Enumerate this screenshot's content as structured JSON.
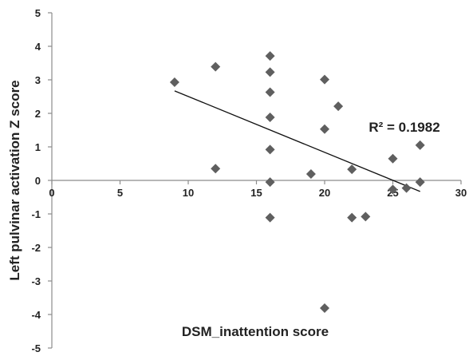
{
  "chart_data": {
    "type": "scatter",
    "title": "",
    "xlabel": "DSM_inattention score",
    "ylabel": "Left pulvinar activation Z score",
    "xlim": [
      0,
      30
    ],
    "ylim": [
      -5,
      5
    ],
    "xticks": [
      "0",
      "5",
      "10",
      "15",
      "20",
      "25",
      "30"
    ],
    "yticks": [
      "5",
      "4",
      "3",
      "2",
      "1",
      "0",
      "-1",
      "-2",
      "-3",
      "-4",
      "-5"
    ],
    "grid": false,
    "legend": "none",
    "marker": "diamond",
    "colors": {
      "marker": "#5f5f5f",
      "axis": "#8c8c8c",
      "trendline": "#111111",
      "text": "#222222"
    },
    "points": [
      {
        "x": 9,
        "y": 2.93
      },
      {
        "x": 12,
        "y": 3.39
      },
      {
        "x": 12,
        "y": 0.35
      },
      {
        "x": 16,
        "y": 3.71
      },
      {
        "x": 16,
        "y": 3.23
      },
      {
        "x": 16,
        "y": 2.63
      },
      {
        "x": 16,
        "y": 1.88
      },
      {
        "x": 16,
        "y": 0.92
      },
      {
        "x": 16,
        "y": -0.05
      },
      {
        "x": 16,
        "y": -1.11
      },
      {
        "x": 19,
        "y": 0.19
      },
      {
        "x": 20,
        "y": 3.01
      },
      {
        "x": 20,
        "y": 1.53
      },
      {
        "x": 20,
        "y": -3.81
      },
      {
        "x": 21,
        "y": 2.21
      },
      {
        "x": 22,
        "y": 0.33
      },
      {
        "x": 22,
        "y": -1.11
      },
      {
        "x": 23,
        "y": -1.08
      },
      {
        "x": 25,
        "y": 0.65
      },
      {
        "x": 25,
        "y": -0.27
      },
      {
        "x": 26,
        "y": -0.23
      },
      {
        "x": 27,
        "y": 1.05
      },
      {
        "x": 27,
        "y": -0.05
      }
    ],
    "trendline": {
      "type": "linear",
      "x": [
        9,
        27
      ],
      "y": [
        2.67,
        -0.33
      ]
    },
    "annotation": "R² = 0.1982"
  }
}
